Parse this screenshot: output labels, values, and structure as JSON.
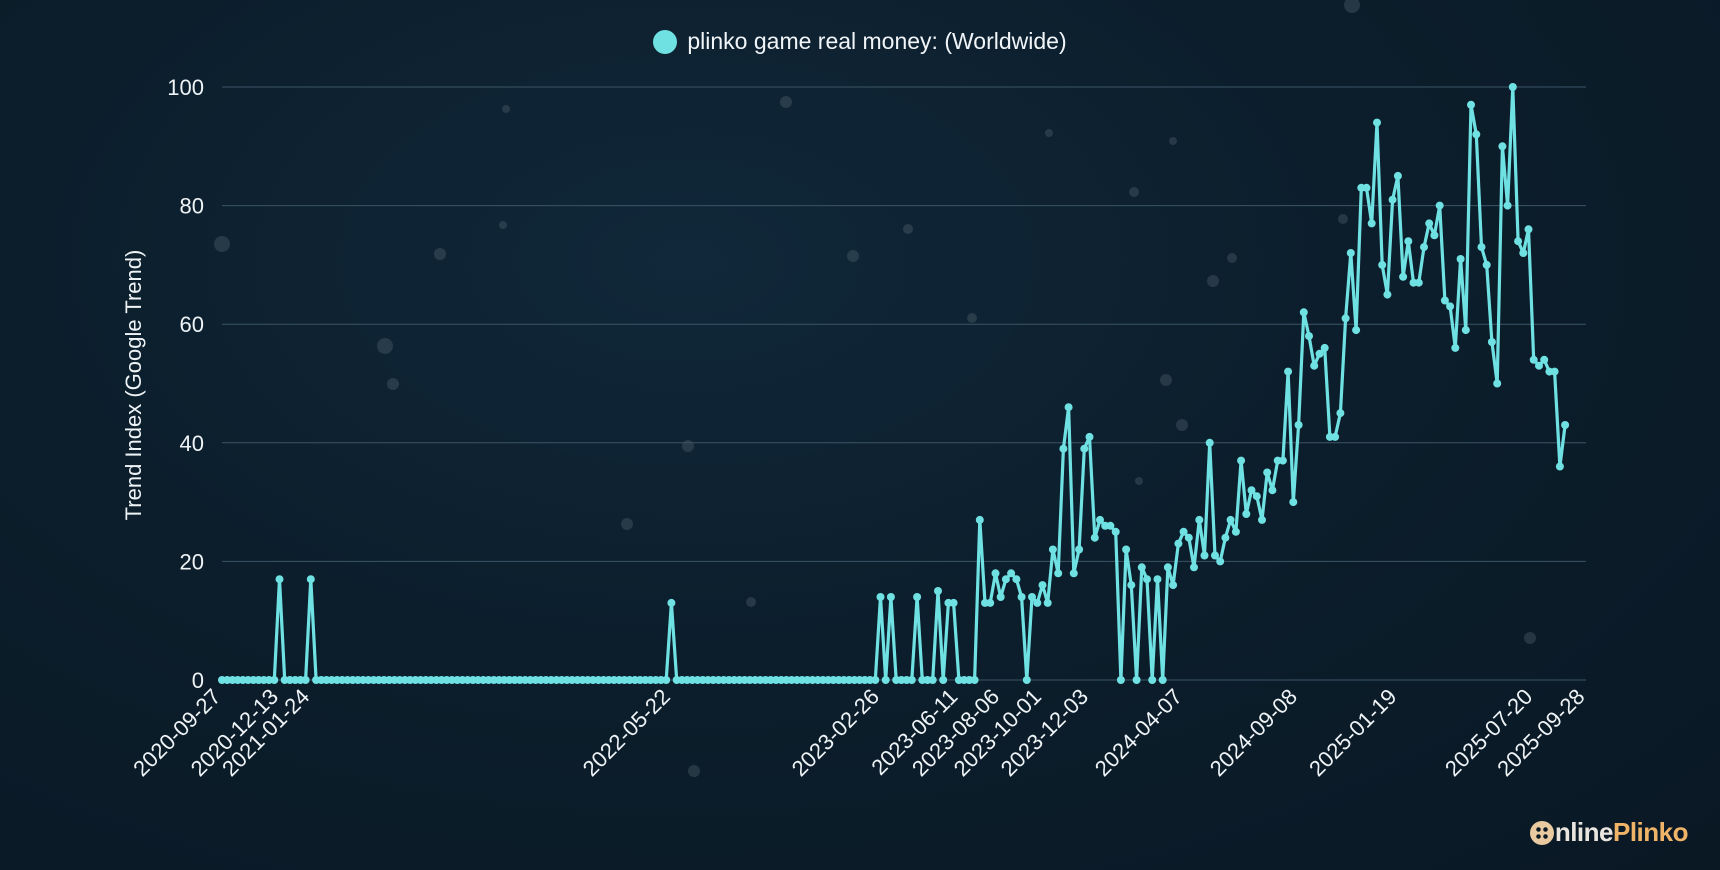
{
  "legend": {
    "label": "plinko game real money: (Worldwide)"
  },
  "brand": {
    "part1": "nline",
    "part2": "Plinko",
    "logo_icon": "plinko-board-icon"
  },
  "colors": {
    "line": "#6fe1e3",
    "grid": "#3b5566",
    "text": "#eef3f6"
  },
  "chart_data": {
    "type": "line",
    "ylabel": "Trend Index (Google Trend)",
    "xlabel": "",
    "ylim": [
      0,
      100
    ],
    "yticks": [
      0,
      20,
      40,
      60,
      80,
      100
    ],
    "grid": true,
    "legend_position": "top-center",
    "xticks": [
      "2020-09-27",
      "2020-12-13",
      "2021-01-24",
      "2022-05-22",
      "2023-02-26",
      "2023-06-11",
      "2023-08-06",
      "2023-10-01",
      "2023-12-03",
      "2024-04-07",
      "2024-09-08",
      "2025-01-19",
      "2025-07-20",
      "2025-09-28"
    ],
    "spikes": [
      {
        "date": "2020-12-13",
        "value": 17
      },
      {
        "date": "2021-01-24",
        "value": 17
      },
      {
        "date": "2022-05-22",
        "value": 13
      },
      {
        "date": "2023-02-26",
        "value": 14
      },
      {
        "date": "2023-03-12",
        "value": 14
      },
      {
        "date": "2023-04-16",
        "value": 14
      }
    ],
    "series": [
      {
        "name": "plinko game real money: (Worldwide)",
        "points": [
          [
            "2023-05-07",
            0
          ],
          [
            "2023-05-14",
            15
          ],
          [
            "2023-05-21",
            0
          ],
          [
            "2023-05-28",
            13
          ],
          [
            "2023-06-04",
            13
          ],
          [
            "2023-06-11",
            0
          ],
          [
            "2023-06-18",
            0
          ],
          [
            "2023-06-25",
            0
          ],
          [
            "2023-07-02",
            0
          ],
          [
            "2023-07-09",
            27
          ],
          [
            "2023-07-16",
            13
          ],
          [
            "2023-07-23",
            13
          ],
          [
            "2023-07-30",
            18
          ],
          [
            "2023-08-06",
            14
          ],
          [
            "2023-08-13",
            17
          ],
          [
            "2023-08-20",
            18
          ],
          [
            "2023-08-27",
            17
          ],
          [
            "2023-09-03",
            14
          ],
          [
            "2023-09-10",
            0
          ],
          [
            "2023-09-17",
            14
          ],
          [
            "2023-09-24",
            13
          ],
          [
            "2023-10-01",
            16
          ],
          [
            "2023-10-08",
            13
          ],
          [
            "2023-10-15",
            22
          ],
          [
            "2023-10-22",
            18
          ],
          [
            "2023-10-29",
            39
          ],
          [
            "2023-11-05",
            46
          ],
          [
            "2023-11-12",
            18
          ],
          [
            "2023-11-19",
            22
          ],
          [
            "2023-11-26",
            39
          ],
          [
            "2023-12-03",
            41
          ],
          [
            "2023-12-10",
            24
          ],
          [
            "2023-12-17",
            27
          ],
          [
            "2023-12-24",
            26
          ],
          [
            "2023-12-31",
            26
          ],
          [
            "2024-01-07",
            25
          ],
          [
            "2024-01-14",
            0
          ],
          [
            "2024-01-21",
            22
          ],
          [
            "2024-01-28",
            16
          ],
          [
            "2024-02-04",
            0
          ],
          [
            "2024-02-11",
            19
          ],
          [
            "2024-02-18",
            17
          ],
          [
            "2024-02-25",
            0
          ],
          [
            "2024-03-03",
            17
          ],
          [
            "2024-03-10",
            0
          ],
          [
            "2024-03-17",
            19
          ],
          [
            "2024-03-24",
            16
          ],
          [
            "2024-03-31",
            23
          ],
          [
            "2024-04-07",
            25
          ],
          [
            "2024-04-14",
            24
          ],
          [
            "2024-04-21",
            19
          ],
          [
            "2024-04-28",
            27
          ],
          [
            "2024-05-05",
            21
          ],
          [
            "2024-05-12",
            40
          ],
          [
            "2024-05-19",
            21
          ],
          [
            "2024-05-26",
            20
          ],
          [
            "2024-06-02",
            24
          ],
          [
            "2024-06-09",
            27
          ],
          [
            "2024-06-16",
            25
          ],
          [
            "2024-06-23",
            37
          ],
          [
            "2024-06-30",
            28
          ],
          [
            "2024-07-07",
            32
          ],
          [
            "2024-07-14",
            31
          ],
          [
            "2024-07-21",
            27
          ],
          [
            "2024-07-28",
            35
          ],
          [
            "2024-08-04",
            32
          ],
          [
            "2024-08-11",
            37
          ],
          [
            "2024-08-18",
            37
          ],
          [
            "2024-08-25",
            52
          ],
          [
            "2024-09-01",
            30
          ],
          [
            "2024-09-08",
            43
          ],
          [
            "2024-09-15",
            62
          ],
          [
            "2024-09-22",
            58
          ],
          [
            "2024-09-29",
            53
          ],
          [
            "2024-10-06",
            55
          ],
          [
            "2024-10-13",
            56
          ],
          [
            "2024-10-20",
            41
          ],
          [
            "2024-10-27",
            41
          ],
          [
            "2024-11-03",
            45
          ],
          [
            "2024-11-10",
            61
          ],
          [
            "2024-11-17",
            72
          ],
          [
            "2024-11-24",
            59
          ],
          [
            "2024-12-01",
            83
          ],
          [
            "2024-12-08",
            83
          ],
          [
            "2024-12-15",
            77
          ],
          [
            "2024-12-22",
            94
          ],
          [
            "2024-12-29",
            70
          ],
          [
            "2025-01-05",
            65
          ],
          [
            "2025-01-12",
            81
          ],
          [
            "2025-01-19",
            85
          ],
          [
            "2025-01-26",
            68
          ],
          [
            "2025-02-02",
            74
          ],
          [
            "2025-02-09",
            67
          ],
          [
            "2025-02-16",
            67
          ],
          [
            "2025-02-23",
            73
          ],
          [
            "2025-03-02",
            77
          ],
          [
            "2025-03-09",
            75
          ],
          [
            "2025-03-16",
            80
          ],
          [
            "2025-03-23",
            64
          ],
          [
            "2025-03-30",
            63
          ],
          [
            "2025-04-06",
            56
          ],
          [
            "2025-04-13",
            71
          ],
          [
            "2025-04-20",
            59
          ],
          [
            "2025-04-27",
            97
          ],
          [
            "2025-05-04",
            92
          ],
          [
            "2025-05-11",
            73
          ],
          [
            "2025-05-18",
            70
          ],
          [
            "2025-05-25",
            57
          ],
          [
            "2025-06-01",
            50
          ],
          [
            "2025-06-08",
            90
          ],
          [
            "2025-06-15",
            80
          ],
          [
            "2025-06-22",
            100
          ],
          [
            "2025-06-29",
            74
          ],
          [
            "2025-07-06",
            72
          ],
          [
            "2025-07-13",
            76
          ],
          [
            "2025-07-20",
            54
          ],
          [
            "2025-07-27",
            53
          ],
          [
            "2025-08-03",
            54
          ],
          [
            "2025-08-10",
            52
          ],
          [
            "2025-08-17",
            52
          ],
          [
            "2025-08-24",
            36
          ],
          [
            "2025-08-31",
            43
          ]
        ]
      }
    ]
  }
}
